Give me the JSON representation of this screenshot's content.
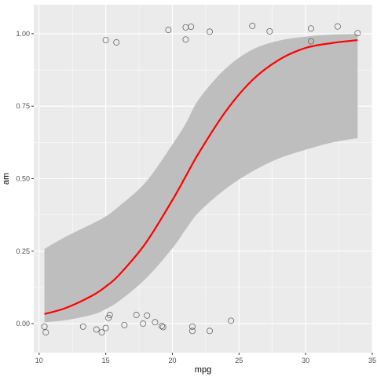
{
  "chart_data": {
    "type": "scatter",
    "xlabel": "mpg",
    "ylabel": "am",
    "xlim": [
      9.6,
      35.0
    ],
    "ylim": [
      -0.1,
      1.1
    ],
    "x_ticks": [
      10,
      15,
      20,
      25,
      30,
      35
    ],
    "y_ticks": [
      0.0,
      0.25,
      0.5,
      0.75,
      1.0
    ],
    "x_tick_labels": [
      "10",
      "15",
      "20",
      "25",
      "30",
      "35"
    ],
    "y_tick_labels": [
      "0.00",
      "0.25",
      "0.50",
      "0.75",
      "1.00"
    ],
    "grid": true,
    "points": [
      {
        "x": 10.4,
        "y": -0.01
      },
      {
        "x": 10.5,
        "y": -0.03
      },
      {
        "x": 13.3,
        "y": -0.01
      },
      {
        "x": 14.3,
        "y": -0.02
      },
      {
        "x": 14.7,
        "y": -0.03
      },
      {
        "x": 15.0,
        "y": -0.015
      },
      {
        "x": 15.2,
        "y": 0.02
      },
      {
        "x": 15.3,
        "y": 0.03
      },
      {
        "x": 16.4,
        "y": -0.005
      },
      {
        "x": 17.3,
        "y": 0.03
      },
      {
        "x": 17.8,
        "y": 0.0
      },
      {
        "x": 18.1,
        "y": 0.028
      },
      {
        "x": 18.7,
        "y": 0.005
      },
      {
        "x": 19.2,
        "y": -0.008
      },
      {
        "x": 19.3,
        "y": -0.012
      },
      {
        "x": 21.5,
        "y": -0.01
      },
      {
        "x": 21.5,
        "y": -0.025
      },
      {
        "x": 22.8,
        "y": -0.025
      },
      {
        "x": 24.4,
        "y": 0.01
      },
      {
        "x": 15.0,
        "y": 0.978
      },
      {
        "x": 15.8,
        "y": 0.97
      },
      {
        "x": 19.7,
        "y": 1.013
      },
      {
        "x": 21.0,
        "y": 0.98
      },
      {
        "x": 21.0,
        "y": 1.022
      },
      {
        "x": 21.4,
        "y": 1.024
      },
      {
        "x": 22.8,
        "y": 1.007
      },
      {
        "x": 26.0,
        "y": 1.027
      },
      {
        "x": 27.3,
        "y": 1.008
      },
      {
        "x": 30.4,
        "y": 0.974
      },
      {
        "x": 30.4,
        "y": 1.018
      },
      {
        "x": 32.4,
        "y": 1.025
      },
      {
        "x": 33.9,
        "y": 1.002
      }
    ],
    "fit": {
      "method": "logistic",
      "color": "#ff0000",
      "x": [
        10.4,
        12.0,
        14.0,
        15.0,
        16.0,
        18.0,
        20.0,
        21.0,
        22.0,
        24.0,
        26.0,
        28.0,
        30.0,
        32.0,
        33.9
      ],
      "y": [
        0.033,
        0.054,
        0.097,
        0.128,
        0.168,
        0.278,
        0.426,
        0.508,
        0.59,
        0.732,
        0.84,
        0.91,
        0.951,
        0.968,
        0.978
      ],
      "lo": [
        0.005,
        0.012,
        0.031,
        0.05,
        0.078,
        0.155,
        0.26,
        0.325,
        0.385,
        0.465,
        0.525,
        0.57,
        0.6,
        0.625,
        0.64
      ],
      "hi": [
        0.258,
        0.3,
        0.345,
        0.37,
        0.405,
        0.488,
        0.618,
        0.69,
        0.775,
        0.88,
        0.945,
        0.976,
        0.99,
        0.997,
        0.999
      ]
    },
    "colors": {
      "panel_bg": "#ebebeb",
      "gridline": "#ffffff",
      "ribbon": "#bebebe",
      "point_stroke": "#555555"
    }
  }
}
